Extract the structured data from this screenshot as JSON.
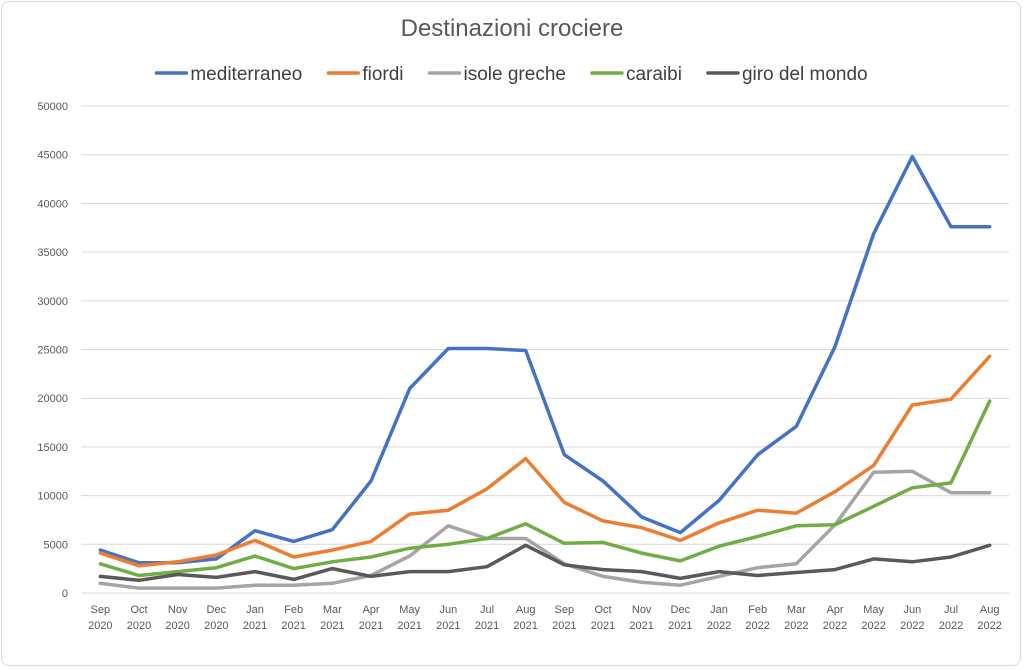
{
  "chart_data": {
    "type": "line",
    "title": "Destinazioni crociere",
    "xlabel": "",
    "ylabel": "",
    "ylim": [
      0,
      50000
    ],
    "ytick_step": 5000,
    "grid": true,
    "legend_position": "top",
    "categories": [
      [
        "Sep",
        "2020"
      ],
      [
        "Oct",
        "2020"
      ],
      [
        "Nov",
        "2020"
      ],
      [
        "Dec",
        "2020"
      ],
      [
        "Jan",
        "2021"
      ],
      [
        "Feb",
        "2021"
      ],
      [
        "Mar",
        "2021"
      ],
      [
        "Apr",
        "2021"
      ],
      [
        "May",
        "2021"
      ],
      [
        "Jun",
        "2021"
      ],
      [
        "Jul",
        "2021"
      ],
      [
        "Aug",
        "2021"
      ],
      [
        "Sep",
        "2021"
      ],
      [
        "Oct",
        "2021"
      ],
      [
        "Nov",
        "2021"
      ],
      [
        "Dec",
        "2021"
      ],
      [
        "Jan",
        "2022"
      ],
      [
        "Feb",
        "2022"
      ],
      [
        "Mar",
        "2022"
      ],
      [
        "Apr",
        "2022"
      ],
      [
        "May",
        "2022"
      ],
      [
        "Jun",
        "2022"
      ],
      [
        "Jul",
        "2022"
      ],
      [
        "Aug",
        "2022"
      ]
    ],
    "series": [
      {
        "name": "mediterraneo",
        "color": "#4472c4",
        "values": [
          4400,
          3100,
          3100,
          3500,
          6400,
          5300,
          6500,
          11500,
          21000,
          25100,
          25100,
          24900,
          14200,
          11500,
          7800,
          6200,
          9500,
          14200,
          17100,
          25300,
          36900,
          44800,
          37600,
          37600
        ]
      },
      {
        "name": "fiordi",
        "color": "#ed7d31",
        "values": [
          4100,
          2800,
          3200,
          3900,
          5400,
          3700,
          4400,
          5300,
          8100,
          8500,
          10700,
          13800,
          9300,
          7400,
          6700,
          5400,
          7200,
          8500,
          8200,
          10400,
          13100,
          19300,
          19900,
          24300
        ]
      },
      {
        "name": "isole greche",
        "color": "#a5a5a5",
        "values": [
          1000,
          500,
          500,
          500,
          800,
          800,
          1000,
          1800,
          3800,
          6900,
          5600,
          5600,
          3000,
          1700,
          1100,
          800,
          1700,
          2600,
          3000,
          7000,
          12400,
          12500,
          10300,
          10300
        ]
      },
      {
        "name": "caraibi",
        "color": "#70ad47",
        "values": [
          3000,
          1800,
          2200,
          2600,
          3800,
          2500,
          3200,
          3700,
          4600,
          5000,
          5600,
          7100,
          5100,
          5200,
          4100,
          3300,
          4800,
          5800,
          6900,
          7000,
          8900,
          10800,
          11300,
          19700
        ]
      },
      {
        "name": "giro del mondo",
        "color": "#595959",
        "values": [
          1700,
          1300,
          1900,
          1600,
          2200,
          1400,
          2500,
          1700,
          2200,
          2200,
          2700,
          4900,
          2900,
          2400,
          2200,
          1500,
          2200,
          1800,
          2100,
          2400,
          3500,
          3200,
          3700,
          4900
        ]
      }
    ]
  }
}
